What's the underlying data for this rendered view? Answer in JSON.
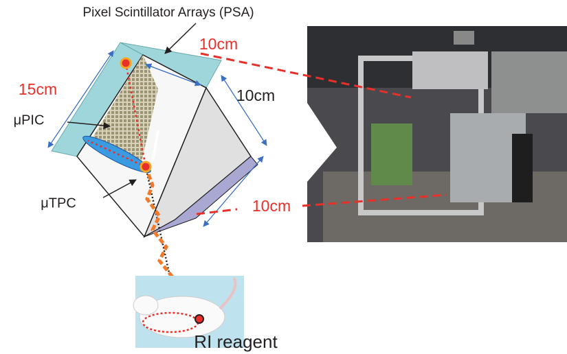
{
  "header": {
    "title": "Pixel Scintillator Arrays (PSA)"
  },
  "labels": {
    "top_size": "10cm",
    "left_size": "15cm",
    "right_size": "10cm",
    "bottom_size": "10cm",
    "upic": "μPIC",
    "utpc": "μTPC",
    "source": "RI reagent"
  }
}
